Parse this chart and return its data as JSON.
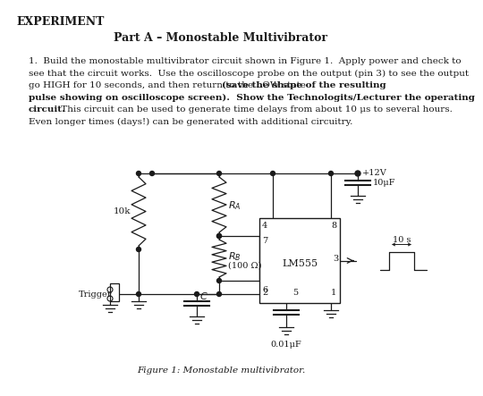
{
  "bg_color": "#ffffff",
  "text_color": "#1a1a1a",
  "title_experiment": "EXPERIMENT",
  "title_part": "Part A – Monostable Multivibrator",
  "line1": "1.  Build the monostable multivibrator circuit shown in Figure 1.  Apply power and check to",
  "line2": "see that the circuit works.  Use the oscilloscope probe on the output (pin 3) to see the output",
  "line3_normal": "go HIGH for 10 seconds, and then return to the LOW state ",
  "line3_bold": "(save the shape of the resulting",
  "line4_bold": "pulse showing on oscilloscope screen).  Show the Technologits/Lecturer the operating",
  "line5_bold": "circuit.",
  "line5_normal": " This circuit can be used to generate time delays from about 10 μs to several hours.",
  "line6": "Even longer times (days!) can be generated with additional circuitry.",
  "figure_caption": "Figure 1: Monostable multivibrator."
}
